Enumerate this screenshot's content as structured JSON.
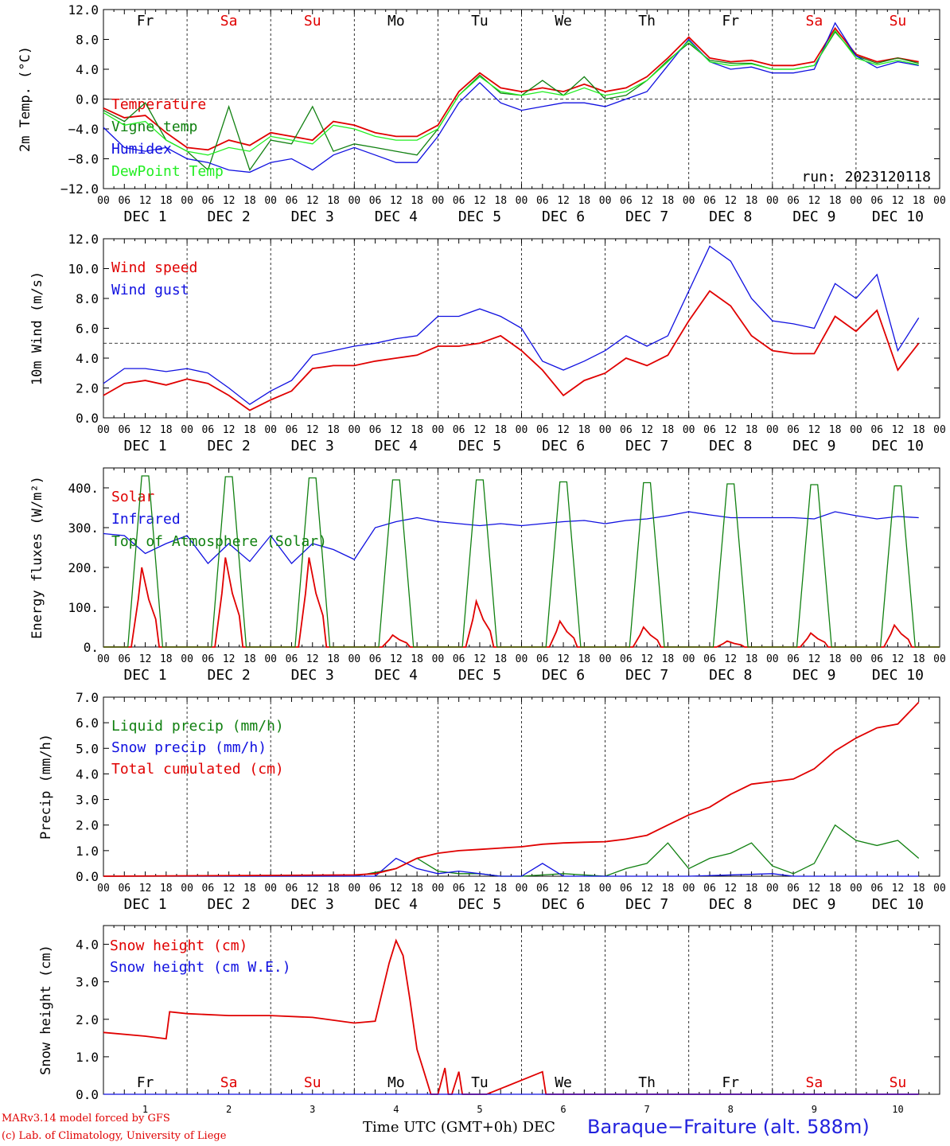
{
  "footer": {
    "model": "MARv3.14 model forced by GFS",
    "credit": "(c) Lab. of Climatology, University of Liege",
    "time_axis": "Time UTC (GMT+0h) DEC",
    "station": "Baraque−Fraiture (alt. 588m)"
  },
  "colors": {
    "red": "#e00000",
    "blue": "#1010e0",
    "green": "#108010",
    "lightgreen": "#22ee22"
  },
  "chart_data": [
    {
      "type": "line",
      "id": "temp",
      "ylabel": "2m Temp. (°C)",
      "ylim": [
        -12,
        12
      ],
      "yticks": [
        "12.0",
        "8.0",
        "4.0",
        "0.0",
        "−4.0",
        "−8.0",
        "−12.0"
      ],
      "refline": 0,
      "weekdays": [
        "Fr",
        "Sa",
        "Su",
        "Mo",
        "Tu",
        "We",
        "Th",
        "Fr",
        "Sa",
        "Su"
      ],
      "weekend_days": [
        1,
        2,
        8,
        9
      ],
      "run": "run: 2023120118",
      "hour_ticks": [
        "00",
        "06",
        "12",
        "18"
      ],
      "date_labels": [
        "DEC  1",
        "DEC  2",
        "DEC  3",
        "DEC  4",
        "DEC  5",
        "DEC  6",
        "DEC  7",
        "DEC  8",
        "DEC  9",
        "DEC 10"
      ],
      "x_unit": "hours since Dec 1 00 UTC",
      "series": [
        {
          "name": "Temperature",
          "color": "#e00000",
          "x": [
            0,
            6,
            12,
            18,
            24,
            30,
            36,
            42,
            48,
            54,
            60,
            66,
            72,
            78,
            84,
            90,
            96,
            102,
            108,
            114,
            120,
            126,
            132,
            138,
            144,
            150,
            156,
            162,
            168,
            174,
            180,
            186,
            192,
            198,
            204,
            210,
            216,
            222,
            228,
            234
          ],
          "values": [
            -1.2,
            -2.5,
            -2.2,
            -4.5,
            -6.5,
            -6.8,
            -5.5,
            -6.2,
            -4.5,
            -5.0,
            -5.5,
            -3.0,
            -3.5,
            -4.5,
            -5.0,
            -5.0,
            -3.5,
            1.0,
            3.5,
            1.5,
            1.0,
            1.5,
            1.0,
            2.0,
            1.0,
            1.5,
            3.0,
            5.5,
            8.3,
            5.5,
            5.0,
            5.2,
            4.5,
            4.5,
            5.0,
            9.5,
            6.0,
            5.0,
            5.5,
            5.0
          ]
        },
        {
          "name": "Vigne temp",
          "color": "#108010",
          "x": [
            0,
            6,
            12,
            18,
            24,
            30,
            36,
            42,
            48,
            54,
            60,
            66,
            72,
            78,
            84,
            90,
            96,
            102,
            108,
            114,
            120,
            126,
            132,
            138,
            144,
            150,
            156,
            162,
            168,
            174,
            180,
            186,
            192,
            198,
            204,
            210,
            216,
            222,
            228,
            234
          ],
          "values": [
            -1.5,
            -3.0,
            -0.5,
            -5.5,
            -7.0,
            -9.5,
            -1.0,
            -9.5,
            -5.5,
            -6.0,
            -1.0,
            -7.0,
            -6.0,
            -6.5,
            -7.0,
            -7.5,
            -4.0,
            0.5,
            3.2,
            0.8,
            0.5,
            2.5,
            0.5,
            3.0,
            0.0,
            0.5,
            2.5,
            5.2,
            7.5,
            5.2,
            4.8,
            4.8,
            4.0,
            4.0,
            4.5,
            9.0,
            5.8,
            4.8,
            5.5,
            4.8
          ]
        },
        {
          "name": "Humidex",
          "color": "#1010e0",
          "x": [
            0,
            6,
            12,
            18,
            24,
            30,
            36,
            42,
            48,
            54,
            60,
            66,
            72,
            78,
            84,
            90,
            96,
            102,
            108,
            114,
            120,
            126,
            132,
            138,
            144,
            150,
            156,
            162,
            168,
            174,
            180,
            186,
            192,
            198,
            204,
            210,
            216,
            222,
            228,
            234
          ],
          "values": [
            -3.8,
            -6.5,
            -7.0,
            -6.5,
            -8.0,
            -8.5,
            -9.5,
            -9.8,
            -8.5,
            -8.0,
            -9.5,
            -7.5,
            -6.5,
            -7.5,
            -8.5,
            -8.5,
            -5.0,
            -0.5,
            2.2,
            -0.5,
            -1.5,
            -1.0,
            -0.5,
            -0.5,
            -1.0,
            0.0,
            1.0,
            4.5,
            8.0,
            5.0,
            4.0,
            4.3,
            3.5,
            3.5,
            4.0,
            10.2,
            5.8,
            4.2,
            5.0,
            4.5
          ]
        },
        {
          "name": "DewPoint Temp",
          "color": "#22ee22",
          "x": [
            0,
            6,
            12,
            18,
            24,
            30,
            36,
            42,
            48,
            54,
            60,
            66,
            72,
            78,
            84,
            90,
            96,
            102,
            108,
            114,
            120,
            126,
            132,
            138,
            144,
            150,
            156,
            162,
            168,
            174,
            180,
            186,
            192,
            198,
            204,
            210,
            216,
            222,
            228,
            234
          ],
          "values": [
            -1.8,
            -3.5,
            -3.0,
            -5.5,
            -7.0,
            -7.5,
            -6.5,
            -7.0,
            -5.0,
            -5.5,
            -6.0,
            -3.5,
            -4.0,
            -5.0,
            -5.5,
            -5.5,
            -4.0,
            0.5,
            3.0,
            1.0,
            0.5,
            1.0,
            0.5,
            1.5,
            0.5,
            1.0,
            2.5,
            5.0,
            7.8,
            5.0,
            4.5,
            4.7,
            4.0,
            4.0,
            4.5,
            9.2,
            5.5,
            4.6,
            5.2,
            4.6
          ]
        }
      ]
    },
    {
      "type": "line",
      "id": "wind",
      "ylabel": "10m Wind (m/s)",
      "ylim": [
        0,
        12
      ],
      "yticks": [
        "12.0",
        "10.0",
        "8.0",
        "6.0",
        "4.0",
        "2.0",
        "0.0"
      ],
      "refline": 5,
      "hour_ticks": [
        "00",
        "06",
        "12",
        "18"
      ],
      "date_labels": [
        "DEC  1",
        "DEC  2",
        "DEC  3",
        "DEC  4",
        "DEC  5",
        "DEC  6",
        "DEC  7",
        "DEC  8",
        "DEC  9",
        "DEC 10"
      ],
      "series": [
        {
          "name": "Wind speed",
          "color": "#e00000",
          "x": [
            0,
            6,
            12,
            18,
            24,
            30,
            36,
            42,
            48,
            54,
            60,
            66,
            72,
            78,
            84,
            90,
            96,
            102,
            108,
            114,
            120,
            126,
            132,
            138,
            144,
            150,
            156,
            162,
            168,
            174,
            180,
            186,
            192,
            198,
            204,
            210,
            216,
            222,
            228,
            234
          ],
          "values": [
            1.5,
            2.3,
            2.5,
            2.2,
            2.6,
            2.3,
            1.5,
            0.5,
            1.2,
            1.8,
            3.3,
            3.5,
            3.5,
            3.8,
            4.0,
            4.2,
            4.8,
            4.8,
            5.0,
            5.5,
            4.5,
            3.2,
            1.5,
            2.5,
            3.0,
            4.0,
            3.5,
            4.2,
            6.5,
            8.5,
            7.5,
            5.5,
            4.5,
            4.3,
            4.3,
            6.8,
            5.8,
            7.2,
            3.2,
            5.0
          ]
        },
        {
          "name": "Wind gust",
          "color": "#1010e0",
          "x": [
            0,
            6,
            12,
            18,
            24,
            30,
            36,
            42,
            48,
            54,
            60,
            66,
            72,
            78,
            84,
            90,
            96,
            102,
            108,
            114,
            120,
            126,
            132,
            138,
            144,
            150,
            156,
            162,
            168,
            174,
            180,
            186,
            192,
            198,
            204,
            210,
            216,
            222,
            228,
            234
          ],
          "values": [
            2.3,
            3.3,
            3.3,
            3.1,
            3.3,
            3.0,
            2.0,
            0.9,
            1.8,
            2.5,
            4.2,
            4.5,
            4.8,
            5.0,
            5.3,
            5.5,
            6.8,
            6.8,
            7.3,
            6.8,
            6.0,
            3.8,
            3.2,
            3.8,
            4.5,
            5.5,
            4.8,
            5.5,
            8.5,
            11.5,
            10.5,
            8.0,
            6.5,
            6.3,
            6.0,
            9.0,
            8.0,
            9.6,
            4.5,
            6.7
          ]
        }
      ]
    },
    {
      "type": "line",
      "id": "flux",
      "ylabel": "Energy fluxes (W/m²)",
      "ylim": [
        0,
        450
      ],
      "yticks": [
        "400.",
        "300.",
        "200.",
        "100.",
        "0."
      ],
      "hour_ticks": [
        "00",
        "06",
        "12",
        "18"
      ],
      "date_labels": [
        "DEC  1",
        "DEC  2",
        "DEC  3",
        "DEC  4",
        "DEC  5",
        "DEC  6",
        "DEC  7",
        "DEC  8",
        "DEC  9",
        "DEC 10"
      ],
      "series": [
        {
          "name": "Solar",
          "color": "#e00000",
          "day_peaks": [
            200,
            225,
            225,
            30,
            115,
            65,
            50,
            15,
            35,
            55
          ]
        },
        {
          "name": "Infrared",
          "color": "#1010e0",
          "x": [
            0,
            6,
            12,
            18,
            24,
            30,
            36,
            42,
            48,
            54,
            60,
            66,
            72,
            78,
            84,
            90,
            96,
            102,
            108,
            114,
            120,
            126,
            132,
            138,
            144,
            150,
            156,
            162,
            168,
            174,
            180,
            186,
            192,
            198,
            204,
            210,
            216,
            222,
            228,
            234
          ],
          "values": [
            285,
            280,
            235,
            260,
            280,
            210,
            260,
            215,
            280,
            210,
            260,
            245,
            220,
            300,
            315,
            325,
            315,
            310,
            305,
            310,
            305,
            310,
            315,
            318,
            310,
            318,
            322,
            330,
            340,
            332,
            325,
            325,
            325,
            325,
            322,
            340,
            330,
            322,
            328,
            325
          ]
        },
        {
          "name": "Top of Atmosphere (Solar)",
          "color": "#108010",
          "day_peaks": [
            430,
            428,
            425,
            420,
            420,
            415,
            413,
            410,
            408,
            405
          ]
        }
      ]
    },
    {
      "type": "line",
      "id": "precip",
      "ylabel": "Precip (mm/h)",
      "ylim": [
        0,
        7
      ],
      "yticks": [
        "7.0",
        "6.0",
        "5.0",
        "4.0",
        "3.0",
        "2.0",
        "1.0",
        "0.0"
      ],
      "hour_ticks": [
        "00",
        "06",
        "12",
        "18"
      ],
      "date_labels": [
        "DEC  1",
        "DEC  2",
        "DEC  3",
        "DEC  4",
        "DEC  5",
        "DEC  6",
        "DEC  7",
        "DEC  8",
        "DEC  9",
        "DEC 10"
      ],
      "series": [
        {
          "name": "Liquid precip (mm/h)",
          "color": "#108010",
          "x": [
            0,
            60,
            72,
            84,
            90,
            96,
            102,
            108,
            114,
            120,
            126,
            132,
            138,
            144,
            150,
            156,
            162,
            168,
            174,
            180,
            186,
            192,
            198,
            204,
            210,
            216,
            222,
            228,
            234
          ],
          "values": [
            0,
            0,
            0,
            0.3,
            0.7,
            0.2,
            0.1,
            0.1,
            0,
            0,
            0.05,
            0.1,
            0.05,
            0,
            0.3,
            0.5,
            1.3,
            0.3,
            0.7,
            0.9,
            1.3,
            0.4,
            0.1,
            0.5,
            2.0,
            1.4,
            1.2,
            1.4,
            0.7
          ]
        },
        {
          "name": "Snow precip (mm/h)",
          "color": "#1010e0",
          "x": [
            0,
            78,
            84,
            90,
            96,
            102,
            108,
            114,
            120,
            126,
            132,
            138,
            144,
            150,
            168,
            192,
            198,
            234
          ],
          "values": [
            0,
            0,
            0.7,
            0.3,
            0.1,
            0.2,
            0.1,
            0,
            0,
            0.5,
            0,
            0,
            0,
            0,
            0,
            0.1,
            0,
            0
          ]
        },
        {
          "name": "Total cumulated (cm)",
          "color": "#e00000",
          "x": [
            0,
            72,
            78,
            84,
            90,
            96,
            102,
            108,
            114,
            120,
            126,
            132,
            138,
            144,
            150,
            156,
            162,
            168,
            174,
            180,
            186,
            192,
            198,
            204,
            210,
            216,
            222,
            228,
            234
          ],
          "values": [
            0,
            0.05,
            0.1,
            0.3,
            0.7,
            0.9,
            1.0,
            1.05,
            1.1,
            1.15,
            1.25,
            1.3,
            1.33,
            1.35,
            1.45,
            1.6,
            2.0,
            2.4,
            2.7,
            3.2,
            3.6,
            3.7,
            3.8,
            4.2,
            4.9,
            5.4,
            5.8,
            5.95,
            6.8
          ]
        }
      ]
    },
    {
      "type": "line",
      "id": "snow",
      "ylabel": "Snow height (cm)",
      "ylim": [
        0,
        4.5
      ],
      "yticks": [
        "4.0",
        "3.0",
        "2.0",
        "1.0",
        "0.0"
      ],
      "weekdays": [
        "Fr",
        "Sa",
        "Su",
        "Mo",
        "Tu",
        "We",
        "Th",
        "Fr",
        "Sa",
        "Su"
      ],
      "weekend_days": [
        1,
        2,
        8,
        9
      ],
      "day_numbers": [
        "1",
        "2",
        "3",
        "4",
        "5",
        "6",
        "7",
        "8",
        "9",
        "10"
      ],
      "series": [
        {
          "name": "Snow height (cm)",
          "color": "#e00000",
          "x": [
            0,
            12,
            18,
            19,
            24,
            36,
            48,
            60,
            72,
            78,
            82,
            84,
            86,
            88,
            90,
            92,
            94,
            96,
            98,
            99,
            100,
            102,
            103,
            104,
            108,
            109,
            110,
            126,
            127,
            128,
            234
          ],
          "values": [
            1.65,
            1.55,
            1.48,
            2.2,
            2.15,
            2.1,
            2.1,
            2.05,
            1.9,
            1.95,
            3.5,
            4.1,
            3.7,
            2.5,
            1.2,
            0.6,
            0.0,
            0,
            0.7,
            0,
            0,
            0.6,
            0,
            0,
            0,
            0,
            0,
            0.6,
            0,
            0,
            0
          ]
        },
        {
          "name": "Snow height (cm W.E.)",
          "color": "#1010e0",
          "x": [
            0,
            234
          ],
          "values": [
            0,
            0
          ]
        }
      ]
    }
  ]
}
